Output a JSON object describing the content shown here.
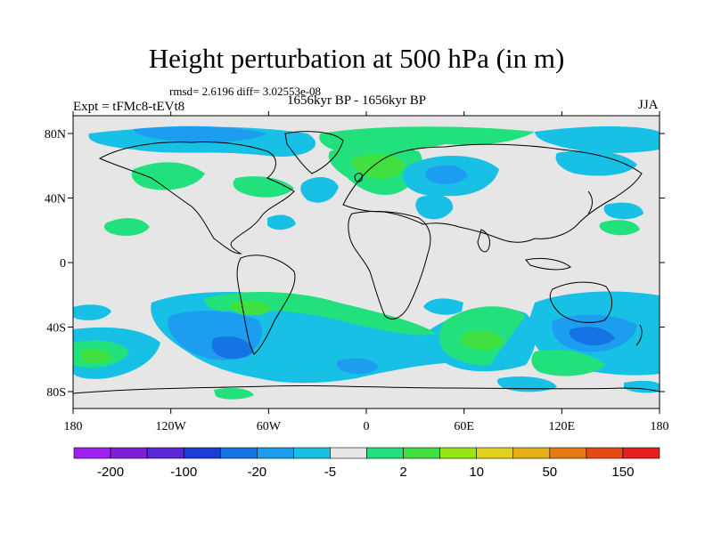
{
  "title": "Height perturbation at 500 hPa (in m)",
  "stats": "rmsd= 2.6196 diff= 3.02553e-08",
  "experiment": "Expt = tFMc8-tEVt8",
  "period": "1656kyr BP - 1656kyr BP",
  "season": "JJA",
  "map": {
    "lon_ticks": [
      "180",
      "120W",
      "60W",
      "0",
      "60E",
      "120E",
      "180"
    ],
    "lat_ticks": [
      "80N",
      "40N",
      "0",
      "40S",
      "80S"
    ],
    "ocean_color": "#e6e6e6",
    "land_outline_color": "#000000"
  },
  "colorbar": {
    "colors": [
      "#a020f0",
      "#7f1ed9",
      "#5a28d7",
      "#1c3cd6",
      "#1573e3",
      "#1d9df0",
      "#19c0e5",
      "#e6e6e6",
      "#22e07c",
      "#40e040",
      "#96e614",
      "#e3d21c",
      "#e6b01a",
      "#e67a14",
      "#e64a14",
      "#e61e1e"
    ],
    "labels": [
      "-200",
      "-100",
      "-20",
      "-5",
      "2",
      "10",
      "50",
      "150"
    ]
  }
}
